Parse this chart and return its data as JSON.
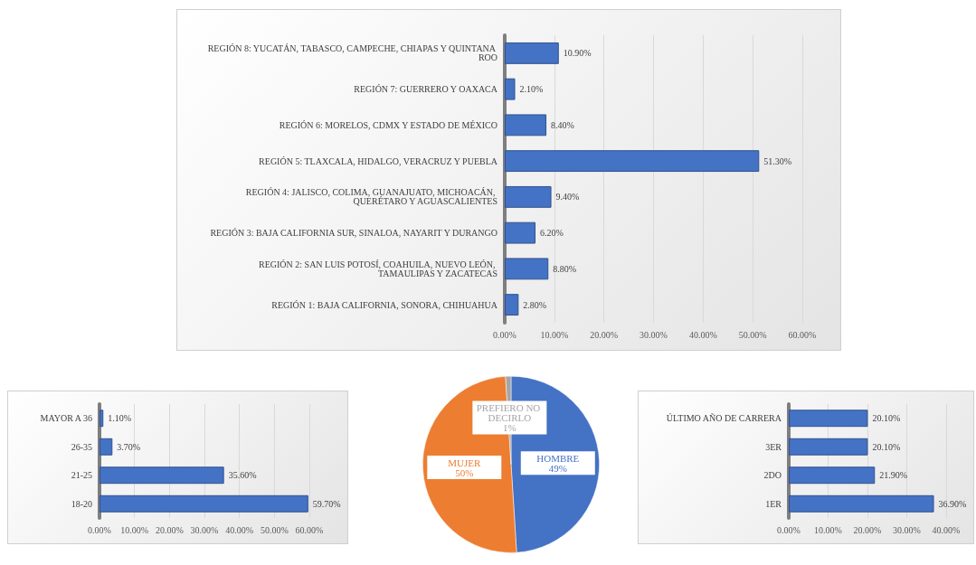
{
  "chart_data": [
    {
      "type": "bar",
      "orientation": "horizontal",
      "categories": [
        "REGIÓN 8: YUCATÁN, TABASCO, CAMPECHE, CHIAPAS Y QUINTANA ROO",
        "REGIÓN 7: GUERRERO Y OAXACA",
        "REGIÓN 6: MORELOS, CDMX Y ESTADO DE MÉXICO",
        "REGIÓN 5: TLAXCALA, HIDALGO, VERACRUZ Y PUEBLA",
        "REGIÓN 4: JALISCO, COLIMA, GUANAJUATO, MICHOACÁN, QUERÉTARO Y AGUASCALIENTES",
        "REGIÓN 3: BAJA CALIFORNIA SUR, SINALOA, NAYARIT Y DURANGO",
        "REGIÓN 2: SAN LUIS POTOSÍ, COAHUILA, NUEVO LEÓN, TAMAULIPAS Y ZACATECAS",
        "REGIÓN 1: BAJA CALIFORNIA, SONORA, CHIHUAHUA"
      ],
      "values": [
        10.9,
        2.1,
        8.4,
        51.3,
        9.4,
        6.2,
        8.8,
        2.8
      ],
      "color": "#4472c4",
      "value_labels": [
        "10.90%",
        "2.10%",
        "8.40%",
        "51.30%",
        "9.40%",
        "6.20%",
        "8.80%",
        "2.80%"
      ],
      "xlim": [
        0,
        60
      ],
      "xticks": [
        {
          "value": 0,
          "label": "0.00%"
        },
        {
          "value": 10,
          "label": "10.00%"
        },
        {
          "value": 20,
          "label": "20.00%"
        },
        {
          "value": 30,
          "label": "30.00%"
        },
        {
          "value": 40,
          "label": "40.00%"
        },
        {
          "value": 50,
          "label": "50.00%"
        },
        {
          "value": 60,
          "label": "60.00%"
        }
      ],
      "grid": "x"
    },
    {
      "type": "bar",
      "orientation": "horizontal",
      "categories": [
        "MAYOR A 36",
        "26-35",
        "21-25",
        "18-20"
      ],
      "values": [
        1.1,
        3.7,
        35.6,
        59.7
      ],
      "color": "#4472c4",
      "value_labels": [
        "1.10%",
        "3.70%",
        "35.60%",
        "59.70%"
      ],
      "xlim": [
        0,
        60
      ],
      "xticks": [
        {
          "value": 0,
          "label": "0.00%"
        },
        {
          "value": 10,
          "label": "10.00%"
        },
        {
          "value": 20,
          "label": "20.00%"
        },
        {
          "value": 30,
          "label": "30.00%"
        },
        {
          "value": 40,
          "label": "40.00%"
        },
        {
          "value": 50,
          "label": "50.00%"
        },
        {
          "value": 60,
          "label": "60.00%"
        }
      ],
      "grid": "x"
    },
    {
      "type": "pie",
      "categories": [
        "HOMBRE",
        "MUJER",
        "PREFIERO NO DECIRLO"
      ],
      "values": [
        49,
        50,
        1
      ],
      "colors": [
        "#4472c4",
        "#ed7d31",
        "#a5a5a5"
      ],
      "value_labels": [
        "49%",
        "50%",
        "1%"
      ]
    },
    {
      "type": "bar",
      "orientation": "horizontal",
      "categories": [
        "ÚLTIMO AÑO DE CARRERA",
        "3ER",
        "2DO",
        "1ER"
      ],
      "values": [
        20.1,
        20.1,
        21.9,
        36.9
      ],
      "color": "#4472c4",
      "value_labels": [
        "20.10%",
        "20.10%",
        "21.90%",
        "36.90%"
      ],
      "xlim": [
        0,
        40
      ],
      "xticks": [
        {
          "value": 0,
          "label": "0.00%"
        },
        {
          "value": 10,
          "label": "10.00%"
        },
        {
          "value": 20,
          "label": "20.00%"
        },
        {
          "value": 30,
          "label": "30.00%"
        },
        {
          "value": 40,
          "label": "40.00%"
        }
      ],
      "grid": "x"
    }
  ]
}
